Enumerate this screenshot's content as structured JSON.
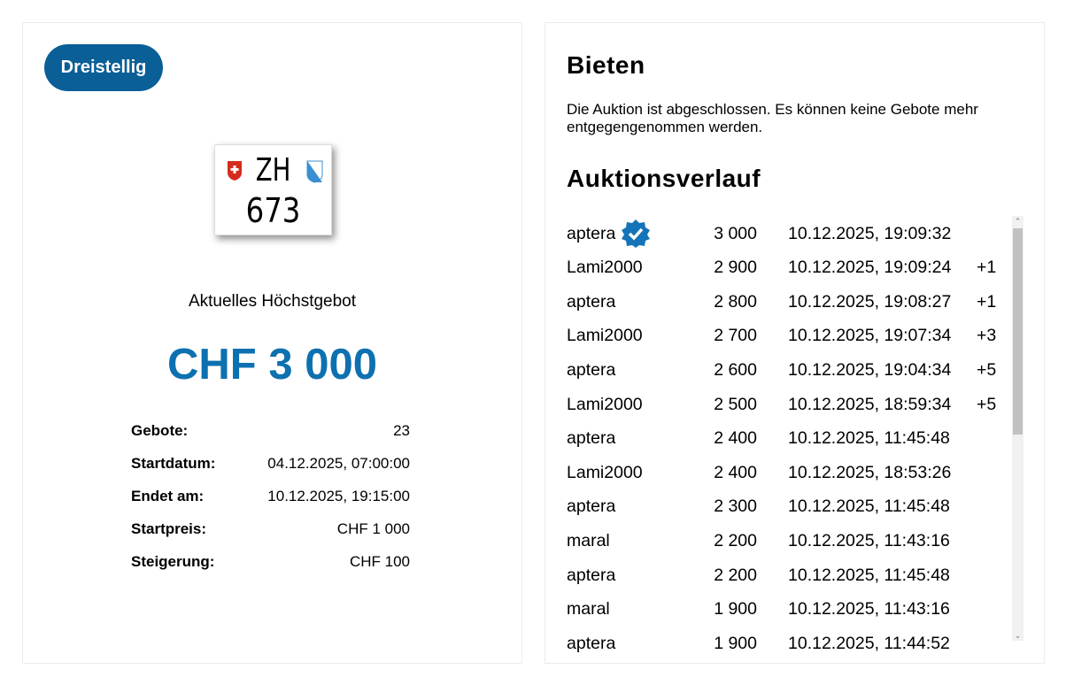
{
  "category_badge": "Dreistellig",
  "plate": {
    "canton": "ZH",
    "number": "673"
  },
  "current_bid_label": "Aktuelles Höchstgebot",
  "current_bid": "CHF 3 000",
  "info": [
    {
      "label": "Gebote:",
      "value": "23"
    },
    {
      "label": "Startdatum:",
      "value": "04.12.2025, 07:00:00"
    },
    {
      "label": "Endet am:",
      "value": "10.12.2025, 19:15:00"
    },
    {
      "label": "Startpreis:",
      "value": "CHF 1 000"
    },
    {
      "label": "Steigerung:",
      "value": "CHF 100"
    }
  ],
  "bid_section": {
    "title": "Bieten",
    "note": "Die Auktion ist abgeschlossen. Es können keine Gebote mehr entgegengenommen werden."
  },
  "history": {
    "title": "Auktionsverlauf",
    "rows": [
      {
        "user": "aptera",
        "amount": "3 000",
        "time": "10.12.2025, 19:09:32",
        "extra": "",
        "verified": true
      },
      {
        "user": "Lami2000",
        "amount": "2 900",
        "time": "10.12.2025, 19:09:24",
        "extra": "+1"
      },
      {
        "user": "aptera",
        "amount": "2 800",
        "time": "10.12.2025, 19:08:27",
        "extra": "+1"
      },
      {
        "user": "Lami2000",
        "amount": "2 700",
        "time": "10.12.2025, 19:07:34",
        "extra": "+3"
      },
      {
        "user": "aptera",
        "amount": "2 600",
        "time": "10.12.2025, 19:04:34",
        "extra": "+5"
      },
      {
        "user": "Lami2000",
        "amount": "2 500",
        "time": "10.12.2025, 18:59:34",
        "extra": "+5"
      },
      {
        "user": "aptera",
        "amount": "2 400",
        "time": "10.12.2025, 11:45:48",
        "extra": ""
      },
      {
        "user": "Lami2000",
        "amount": "2 400",
        "time": "10.12.2025, 18:53:26",
        "extra": ""
      },
      {
        "user": "aptera",
        "amount": "2 300",
        "time": "10.12.2025, 11:45:48",
        "extra": ""
      },
      {
        "user": "maral",
        "amount": "2 200",
        "time": "10.12.2025, 11:43:16",
        "extra": ""
      },
      {
        "user": "aptera",
        "amount": "2 200",
        "time": "10.12.2025, 11:45:48",
        "extra": ""
      },
      {
        "user": "maral",
        "amount": "1 900",
        "time": "10.12.2025, 11:43:16",
        "extra": ""
      },
      {
        "user": "aptera",
        "amount": "1 900",
        "time": "10.12.2025, 11:44:52",
        "extra": ""
      }
    ]
  },
  "colors": {
    "brand": "#0a5f97",
    "price": "#0d70b0"
  }
}
